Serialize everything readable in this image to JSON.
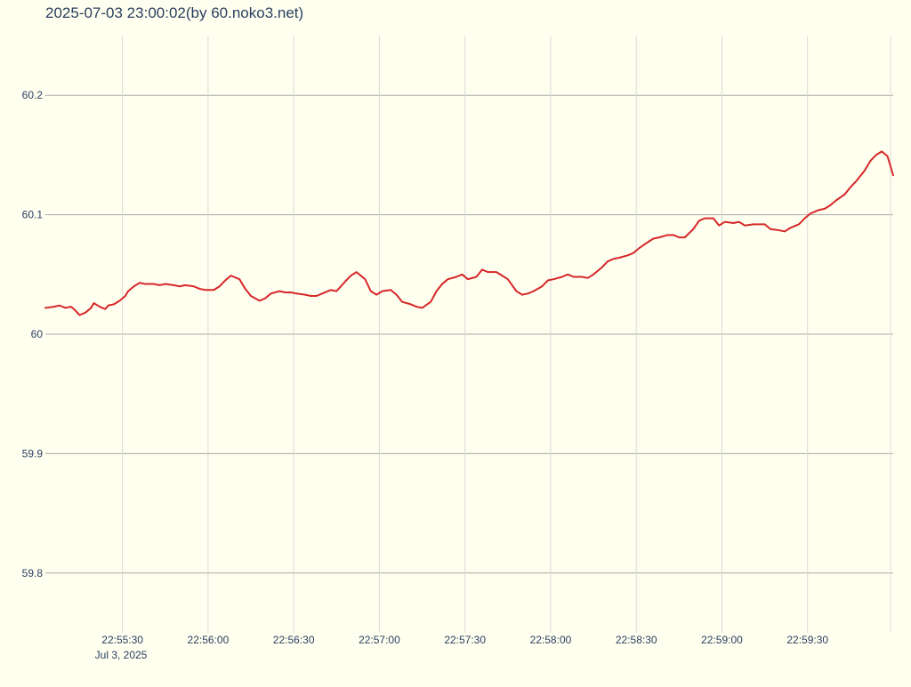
{
  "chart_data": {
    "type": "line",
    "title": "2025-07-03 23:00:02(by 60.noko3.net)",
    "xlabel": "",
    "ylabel": "",
    "date_label": "Jul 3, 2025",
    "x_range": [
      "22:55:03",
      "23:00:00"
    ],
    "ylim": [
      59.75,
      60.25
    ],
    "y_ticks": [
      59.8,
      59.9,
      60,
      60.1,
      60.2
    ],
    "y_tick_labels": [
      "59.8",
      "59.9",
      "60",
      "60.1",
      "60.2"
    ],
    "x_ticks": [
      "22:55:30",
      "22:56:00",
      "22:56:30",
      "22:57:00",
      "22:57:30",
      "22:58:00",
      "22:58:30",
      "22:59:00",
      "22:59:30"
    ],
    "x_tick_labels": [
      "22:55:30",
      "22:56:00",
      "22:56:30",
      "22:57:00",
      "22:57:30",
      "22:58:00",
      "22:58:30",
      "22:59:00",
      "22:59:30"
    ],
    "grid": true,
    "legend": "none",
    "line_color": "#d62728",
    "series": [
      {
        "x": [
          "22:55:03",
          "22:55:06",
          "22:55:08",
          "22:55:10",
          "22:55:12",
          "22:55:13",
          "22:55:15",
          "22:55:17",
          "22:55:19",
          "22:55:20",
          "22:55:22",
          "22:55:24",
          "22:55:25",
          "22:55:27",
          "22:55:29",
          "22:55:31",
          "22:55:32",
          "22:55:34",
          "22:55:36",
          "22:55:38",
          "22:55:41",
          "22:55:43",
          "22:55:45",
          "22:55:48",
          "22:55:50",
          "22:55:52",
          "22:55:55",
          "22:55:57",
          "22:55:59",
          "22:56:02",
          "22:56:04",
          "22:56:06",
          "22:56:08",
          "22:56:11",
          "22:56:13",
          "22:56:15",
          "22:56:18",
          "22:56:20",
          "22:56:22",
          "22:56:25",
          "22:56:27",
          "22:56:29",
          "22:56:31",
          "22:56:34",
          "22:56:36",
          "22:56:38",
          "22:56:41",
          "22:56:43",
          "22:56:45",
          "22:56:48",
          "22:56:50",
          "22:56:52",
          "22:56:55",
          "22:56:57",
          "22:56:59",
          "22:57:01",
          "22:57:04",
          "22:57:06",
          "22:57:08",
          "22:57:11",
          "22:57:13",
          "22:57:15",
          "22:57:18",
          "22:57:20",
          "22:57:22",
          "22:57:24",
          "22:57:27",
          "22:57:29",
          "22:57:31",
          "22:57:34",
          "22:57:36",
          "22:57:38",
          "22:57:41",
          "22:57:43",
          "22:57:45",
          "22:57:48",
          "22:57:50",
          "22:57:52",
          "22:57:54",
          "22:57:57",
          "22:57:59",
          "22:58:01",
          "22:58:04",
          "22:58:06",
          "22:58:08",
          "22:58:11",
          "22:58:13",
          "22:58:15",
          "22:58:18",
          "22:58:20",
          "22:58:22",
          "22:58:24",
          "22:58:27",
          "22:58:29",
          "22:58:31",
          "22:58:34",
          "22:58:36",
          "22:58:38",
          "22:58:41",
          "22:58:43",
          "22:58:45",
          "22:58:47",
          "22:58:50",
          "22:58:52",
          "22:58:54",
          "22:58:57",
          "22:58:59",
          "22:59:01",
          "22:59:04",
          "22:59:06",
          "22:59:08",
          "22:59:11",
          "22:59:13",
          "22:59:15",
          "22:59:17",
          "22:59:20",
          "22:59:22",
          "22:59:24",
          "22:59:27",
          "22:59:29",
          "22:59:31",
          "22:59:34",
          "22:59:36",
          "22:59:38",
          "22:59:40",
          "22:59:43",
          "22:59:45",
          "22:59:47",
          "22:59:50",
          "22:59:52",
          "22:59:54",
          "22:59:56",
          "22:59:58",
          "23:00:00"
        ],
        "y": [
          60.022,
          60.023,
          60.024,
          60.022,
          60.023,
          60.021,
          60.016,
          60.018,
          60.022,
          60.026,
          60.023,
          60.021,
          60.024,
          60.025,
          60.028,
          60.032,
          60.036,
          60.04,
          60.043,
          60.042,
          60.042,
          60.041,
          60.042,
          60.041,
          60.04,
          60.041,
          60.04,
          60.038,
          60.037,
          60.037,
          60.04,
          60.045,
          60.049,
          60.046,
          60.038,
          60.032,
          60.028,
          60.03,
          60.034,
          60.036,
          60.035,
          60.035,
          60.034,
          60.033,
          60.032,
          60.032,
          60.035,
          60.037,
          60.036,
          60.044,
          60.049,
          60.052,
          60.046,
          60.036,
          60.033,
          60.036,
          60.037,
          60.033,
          60.027,
          60.025,
          60.023,
          60.022,
          60.027,
          60.036,
          60.042,
          60.046,
          60.048,
          60.05,
          60.046,
          60.048,
          60.054,
          60.052,
          60.052,
          60.049,
          60.046,
          60.036,
          60.033,
          60.034,
          60.036,
          60.04,
          60.045,
          60.046,
          60.048,
          60.05,
          60.048,
          60.048,
          60.047,
          60.05,
          60.056,
          60.061,
          60.063,
          60.064,
          60.066,
          60.068,
          60.072,
          60.077,
          60.08,
          60.081,
          60.083,
          60.083,
          60.081,
          60.081,
          60.088,
          60.095,
          60.097,
          60.097,
          60.091,
          60.094,
          60.093,
          60.094,
          60.091,
          60.092,
          60.092,
          60.092,
          60.088,
          60.087,
          60.086,
          60.089,
          60.092,
          60.097,
          60.101,
          60.104,
          60.105,
          60.108,
          60.112,
          60.117,
          60.123,
          60.128,
          60.137,
          60.145,
          60.15,
          60.153,
          60.149,
          60.133
        ]
      }
    ]
  }
}
